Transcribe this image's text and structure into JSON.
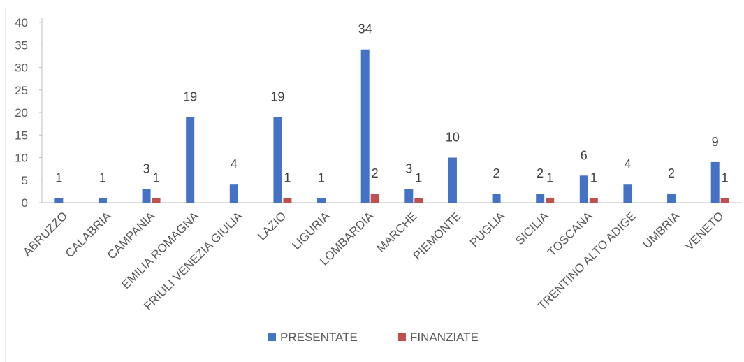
{
  "chart_data": {
    "type": "bar",
    "title": "",
    "xlabel": "",
    "ylabel": "",
    "ylim": [
      0,
      40
    ],
    "yticks": [
      0,
      5,
      10,
      15,
      20,
      25,
      30,
      35,
      40
    ],
    "grid": false,
    "legend_position": "bottom",
    "categories": [
      "ABRUZZO",
      "CALABRIA",
      "CAMPANIA",
      "EMILIA ROMAGNA",
      "FRIULI VENEZIA GIULIA",
      "LAZIO",
      "LIGURIA",
      "LOMBARDIA",
      "MARCHE",
      "PIEMONTE",
      "PUGLIA",
      "SICILIA",
      "TOSCANA",
      "TRENTINO ALTO ADIGE",
      "UMBRIA",
      "VENETO"
    ],
    "series": [
      {
        "name": "PRESENTATE",
        "color": "#4472C4",
        "values": [
          1,
          1,
          3,
          19,
          4,
          19,
          1,
          34,
          3,
          10,
          2,
          2,
          6,
          4,
          2,
          9
        ],
        "data_labels": [
          "1",
          "1",
          "3",
          "19",
          "4",
          "19",
          "1",
          "34",
          "3",
          "10",
          "2",
          "2",
          "6",
          "4",
          "2",
          "9"
        ]
      },
      {
        "name": "FINANZIATE",
        "color": "#C0504D",
        "values": [
          0,
          0,
          1,
          0,
          0,
          1,
          0,
          2,
          1,
          0,
          0,
          1,
          1,
          0,
          0,
          1
        ],
        "data_labels": [
          "",
          "",
          "1",
          "",
          "",
          "1",
          "",
          "2",
          "1",
          "",
          "",
          "1",
          "1",
          "",
          "",
          "1"
        ]
      }
    ]
  }
}
